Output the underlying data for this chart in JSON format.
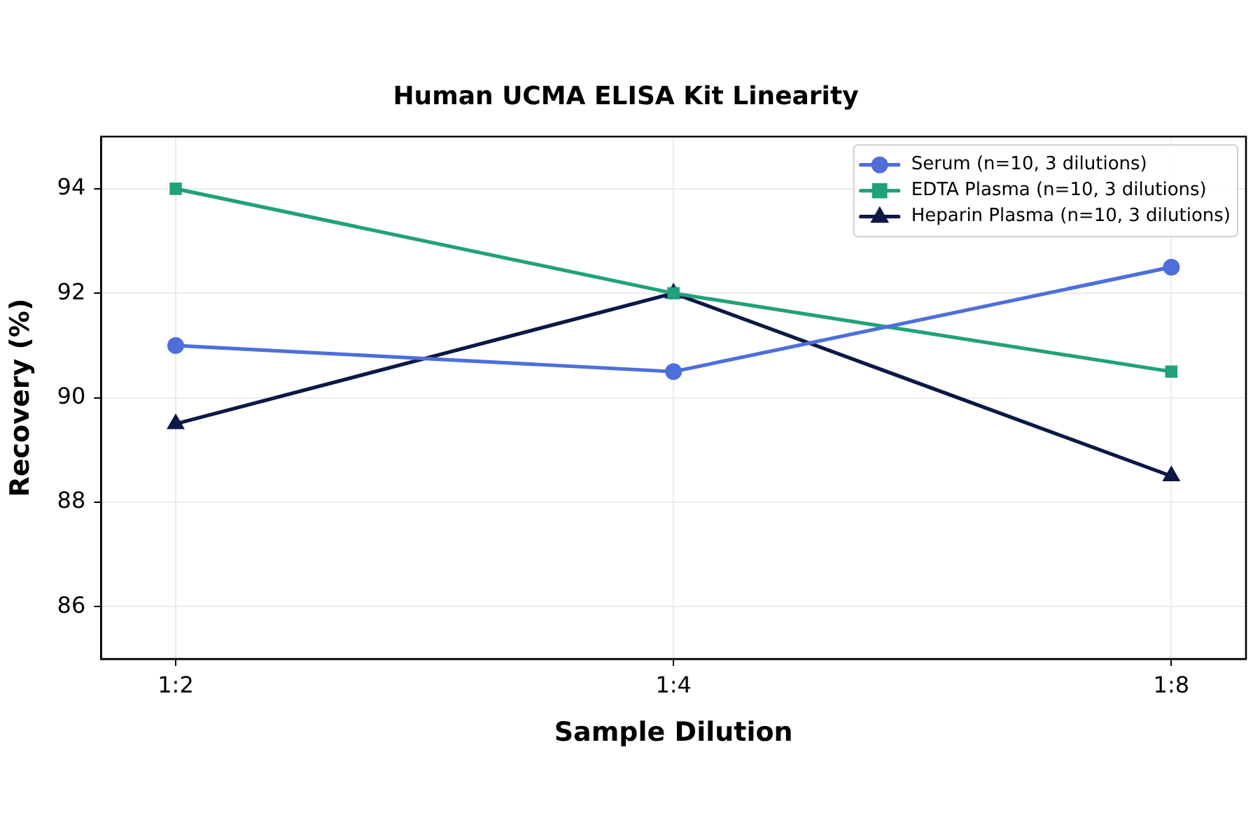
{
  "chart_data": {
    "type": "line",
    "title": "Human UCMA ELISA Kit Linearity",
    "xlabel": "Sample Dilution",
    "ylabel": "Recovery (%)",
    "categories": [
      "1:2",
      "1:4",
      "1:8"
    ],
    "series": [
      {
        "name": "Serum (n=10, 3 dilutions)",
        "color": "#4e6fd9",
        "marker": "circle",
        "values": [
          91,
          90.5,
          92.5
        ]
      },
      {
        "name": "EDTA Plasma (n=10, 3 dilutions)",
        "color": "#21a17b",
        "marker": "square",
        "values": [
          94,
          92,
          90.5
        ]
      },
      {
        "name": "Heparin Plasma (n=10, 3 dilutions)",
        "color": "#0c1845",
        "marker": "triangle",
        "values": [
          89.5,
          92,
          88.5
        ]
      }
    ],
    "ylim": [
      85,
      95
    ],
    "yticks": [
      86,
      88,
      90,
      92,
      94
    ],
    "grid": true,
    "legend": "top right",
    "line_style": "solid"
  }
}
